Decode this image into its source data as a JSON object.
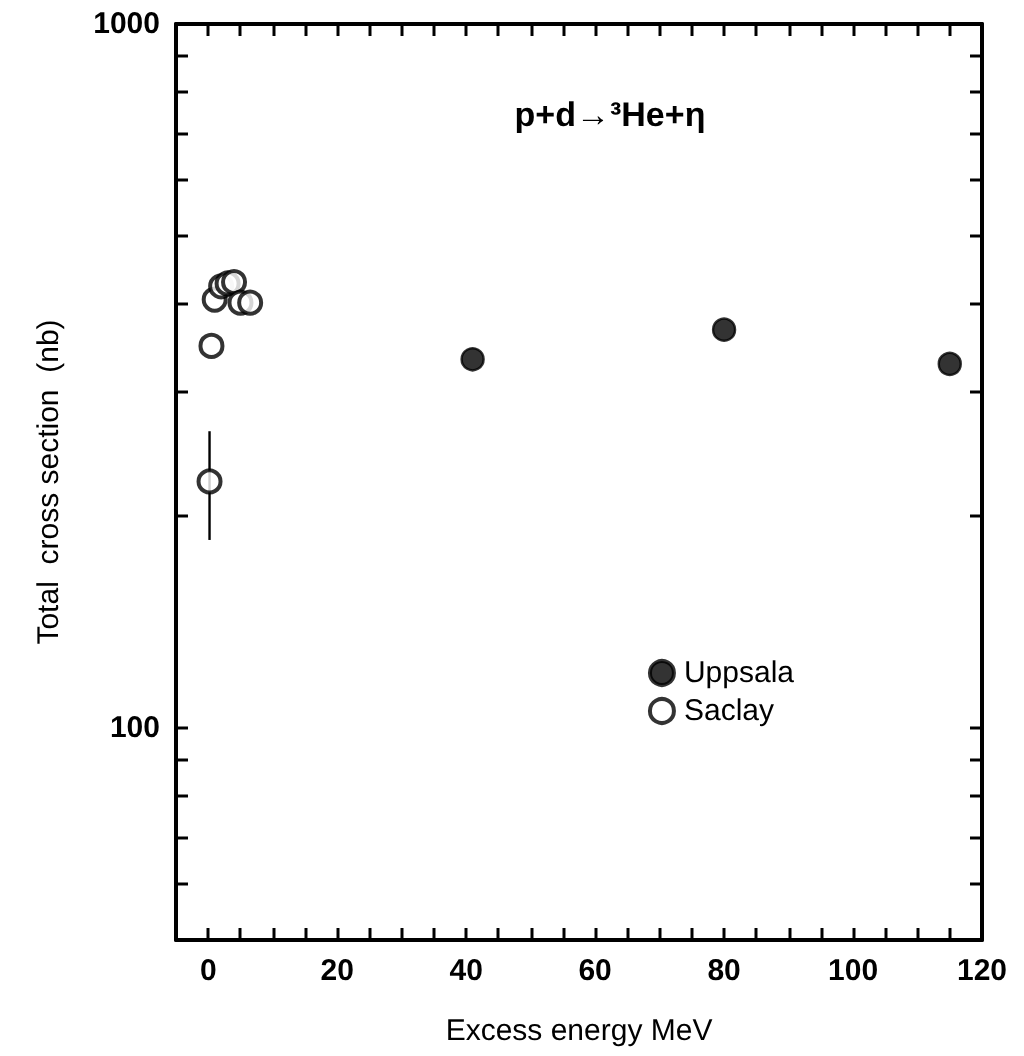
{
  "chart_data": {
    "type": "scatter",
    "title": "p+d→³He+η",
    "xlabel": "Excess energy MeV",
    "ylabel": "Total  cross section  (nb)",
    "log": "y",
    "xlim": [
      -5,
      120
    ],
    "ylim": [
      50,
      1000
    ],
    "xticks": [
      0,
      {
        "value": 5,
        "label": null
      },
      {
        "value": 10,
        "label": null
      },
      {
        "value": 15,
        "label": null
      },
      20,
      {
        "value": 25,
        "label": null
      },
      {
        "value": 30,
        "label": null
      },
      {
        "value": 35,
        "label": null
      },
      40,
      {
        "value": 45,
        "label": null
      },
      {
        "value": 50,
        "label": null
      },
      {
        "value": 55,
        "label": null
      },
      60,
      {
        "value": 65,
        "label": null
      },
      {
        "value": 70,
        "label": null
      },
      {
        "value": 75,
        "label": null
      },
      80,
      {
        "value": 85,
        "label": null
      },
      {
        "value": 90,
        "label": null
      },
      {
        "value": 95,
        "label": null
      },
      100,
      {
        "value": 105,
        "label": null
      },
      {
        "value": 110,
        "label": null
      },
      {
        "value": 115,
        "label": null
      },
      120
    ],
    "yticks": [
      {
        "value": 50,
        "label": null
      },
      {
        "value": 60,
        "label": null
      },
      {
        "value": 70,
        "label": null
      },
      {
        "value": 80,
        "label": null
      },
      {
        "value": 90,
        "label": null
      },
      100,
      {
        "value": 200,
        "label": null
      },
      {
        "value": 300,
        "label": null
      },
      {
        "value": 400,
        "label": null
      },
      {
        "value": 500,
        "label": null
      },
      {
        "value": 600,
        "label": null
      },
      {
        "value": 700,
        "label": null
      },
      {
        "value": 800,
        "label": null
      },
      {
        "value": 900,
        "label": null
      },
      1000
    ],
    "grid": false,
    "legend": "bottom right",
    "series": [
      {
        "name": "Uppsala",
        "color": "#000000",
        "marker": "circle",
        "x": [
          41,
          80,
          115
        ],
        "values": [
          334,
          368,
          329
        ]
      },
      {
        "name": "Saclay",
        "color": "#000000",
        "marker": "open circle",
        "x": [
          0.2,
          0.5,
          1.0,
          2.0,
          3.0,
          4.0,
          5.0,
          6.5
        ],
        "values": [
          224,
          349,
          406,
          424,
          428,
          430,
          402,
          402
        ],
        "errors": [
          [
            185,
            264
          ],
          null,
          null,
          null,
          null,
          null,
          null,
          null
        ]
      }
    ]
  }
}
